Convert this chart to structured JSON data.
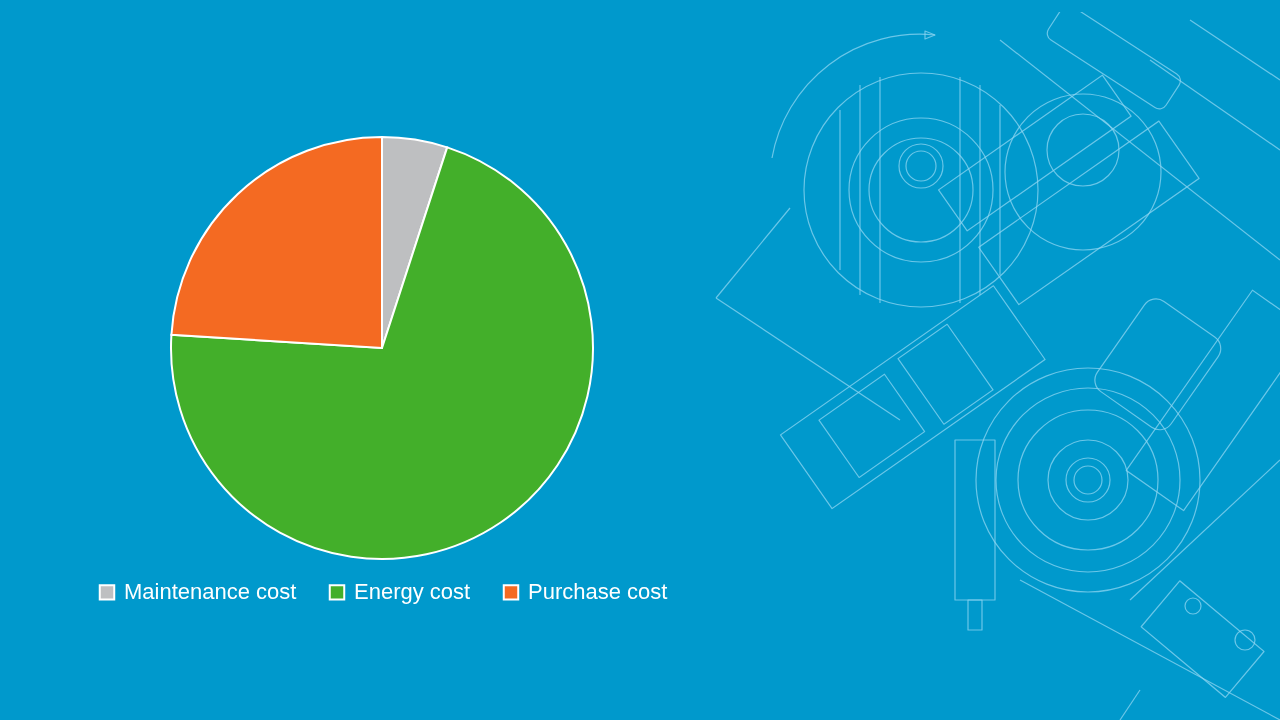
{
  "chart_data": {
    "type": "pie",
    "categories": [
      "Maintenance cost",
      "Energy cost",
      "Purchase cost"
    ],
    "values": [
      5,
      71,
      24
    ],
    "colors": [
      "#bebfc1",
      "#43af2a",
      "#f46a22"
    ],
    "legend": "bottom"
  }
}
